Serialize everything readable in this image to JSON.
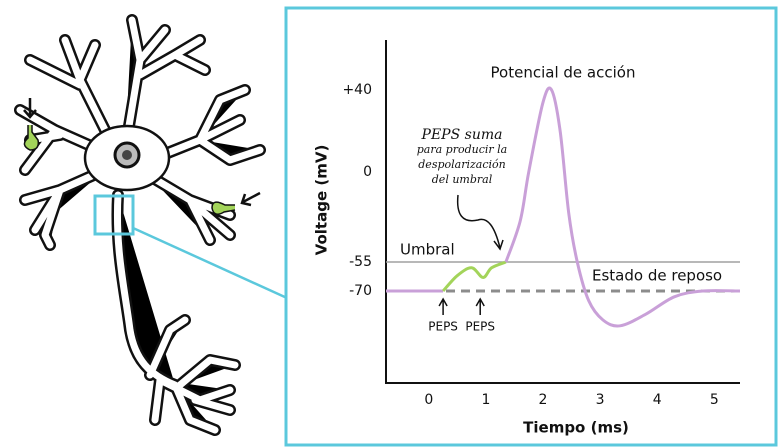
{
  "chart_data": {
    "type": "line",
    "title": "Potencial de acción",
    "x_label": "Tiempo (ms)",
    "y_label": "Voltage (mV)",
    "xlim": [
      -0.75,
      5.45
    ],
    "xticks": [
      0,
      1,
      2,
      3,
      4,
      5
    ],
    "yticks": [
      {
        "value": 40,
        "label": "+40"
      },
      0,
      -55,
      -70
    ],
    "series": [
      {
        "color": "#c9a0d8",
        "x": [
          -0.75,
          0.25
        ],
        "values": [
          -70,
          -70
        ]
      },
      {
        "color": "#a3d45a",
        "x": [
          0.25,
          0.5,
          0.75,
          0.95,
          1.1,
          1.35
        ],
        "values": [
          -70,
          -62,
          -58,
          -63,
          -58,
          -55
        ]
      },
      {
        "color": "#c9a0d8",
        "x": [
          1.35,
          1.6,
          1.75,
          2.0,
          2.15,
          2.3,
          2.45,
          2.6,
          2.8,
          3.05,
          3.35,
          3.8,
          4.3,
          4.8,
          5.45
        ],
        "values": [
          -55,
          -30,
          0,
          34,
          40,
          20,
          -25,
          -55,
          -75,
          -85,
          -88,
          -82,
          -73,
          -70,
          -70
        ]
      }
    ],
    "reference_lines": [
      {
        "value": -55,
        "label": "Umbral",
        "color": "#a0a0a0",
        "dashed": false
      },
      {
        "value": -70,
        "label": "Estado de reposo",
        "color": "#8c8c8c",
        "dashed": true
      }
    ],
    "annotations": {
      "epsp_note": [
        "PEPS suma",
        "para producir la",
        "despolarización",
        "del umbral"
      ],
      "epsp_markers": [
        {
          "x": 0.25,
          "label": "PEPS"
        },
        {
          "x": 0.9,
          "label": "PEPS"
        }
      ]
    }
  }
}
